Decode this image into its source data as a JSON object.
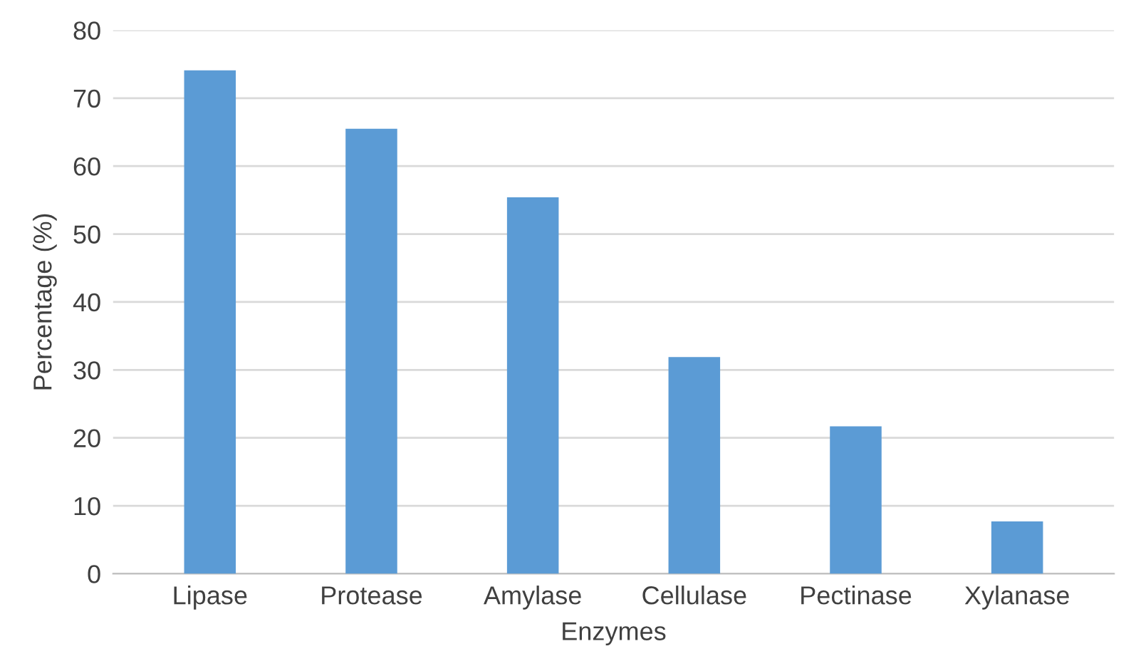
{
  "chart_data": {
    "type": "bar",
    "xlabel": "Enzymes",
    "ylabel": "Percentage (%)",
    "categories": [
      "Lipase",
      "Protease",
      "Amylase",
      "Cellulase",
      "Pectinase",
      "Xylanase"
    ],
    "values": [
      74.1,
      65.5,
      55.4,
      31.9,
      21.7,
      7.7
    ],
    "color": "#5b9bd5",
    "ylim": [
      0,
      80
    ],
    "yticks": [
      0,
      10,
      20,
      30,
      40,
      50,
      60,
      70,
      80
    ],
    "grid": "y",
    "legend": false
  }
}
